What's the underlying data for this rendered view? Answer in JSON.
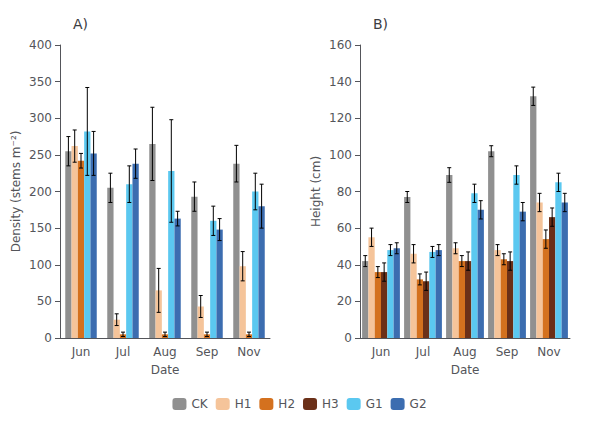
{
  "chart_data": [
    {
      "type": "bar",
      "title": "A)",
      "xlabel": "Date",
      "ylabel": "Density (stems m⁻²)",
      "categories": [
        "Jun",
        "Jul",
        "Aug",
        "Sep",
        "Nov"
      ],
      "series": [
        {
          "name": "CK",
          "color": "#909090",
          "values": [
            255,
            205,
            265,
            193,
            238
          ],
          "errors": [
            20,
            20,
            50,
            20,
            25
          ]
        },
        {
          "name": "H1",
          "color": "#F5C49A",
          "values": [
            262,
            25,
            65,
            43,
            98
          ],
          "errors": [
            22,
            8,
            30,
            15,
            20
          ]
        },
        {
          "name": "H2",
          "color": "#D4711E",
          "values": [
            242,
            5,
            5,
            5,
            5
          ],
          "errors": [
            10,
            3,
            3,
            3,
            3
          ]
        },
        {
          "name": "G1",
          "color": "#5BC8F0",
          "values": [
            282,
            210,
            228,
            160,
            200
          ],
          "errors": [
            60,
            25,
            70,
            20,
            25
          ]
        },
        {
          "name": "G2",
          "color": "#3C6DB0",
          "values": [
            252,
            238,
            163,
            148,
            180
          ],
          "errors": [
            30,
            20,
            10,
            15,
            30
          ]
        }
      ],
      "ylim": [
        0,
        400
      ],
      "yticks": [
        0,
        50,
        100,
        150,
        200,
        250,
        300,
        350,
        400
      ],
      "grid": false
    },
    {
      "type": "bar",
      "title": "B)",
      "xlabel": "Date",
      "ylabel": "Height (cm)",
      "categories": [
        "Jun",
        "Jul",
        "Aug",
        "Sep",
        "Nov"
      ],
      "series": [
        {
          "name": "CK",
          "color": "#909090",
          "values": [
            42,
            77,
            89,
            102,
            132
          ],
          "errors": [
            3,
            3,
            4,
            3,
            5
          ]
        },
        {
          "name": "H1",
          "color": "#F5C49A",
          "values": [
            55,
            46,
            49,
            48,
            74
          ],
          "errors": [
            5,
            5,
            3,
            3,
            5
          ]
        },
        {
          "name": "H2",
          "color": "#D4711E",
          "values": [
            36,
            32,
            42,
            43,
            54
          ],
          "errors": [
            3,
            3,
            3,
            3,
            5
          ]
        },
        {
          "name": "H3",
          "color": "#6B3018",
          "values": [
            36,
            31,
            42,
            42,
            66
          ],
          "errors": [
            5,
            5,
            5,
            5,
            5
          ]
        },
        {
          "name": "G1",
          "color": "#5BC8F0",
          "values": [
            48,
            47,
            79,
            89,
            85
          ],
          "errors": [
            3,
            3,
            5,
            5,
            5
          ]
        },
        {
          "name": "G2",
          "color": "#3C6DB0",
          "values": [
            49,
            48,
            70,
            69,
            74
          ],
          "errors": [
            3,
            3,
            5,
            5,
            5
          ]
        }
      ],
      "ylim": [
        0,
        160
      ],
      "yticks": [
        0,
        20,
        40,
        60,
        80,
        100,
        120,
        140,
        160
      ],
      "grid": false,
      "legend": "bottom"
    }
  ]
}
